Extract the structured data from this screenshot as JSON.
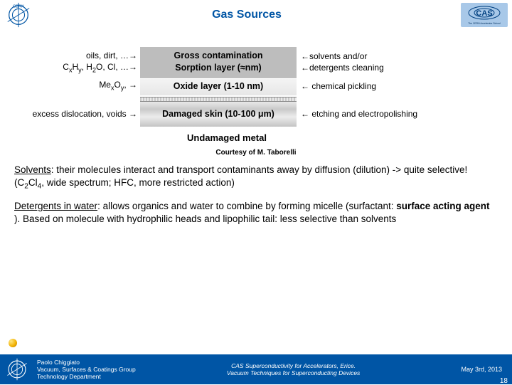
{
  "header": {
    "title": "Gas Sources",
    "left_logo_label": "CERN",
    "right_logo_tag": "The CERN Accelerator School",
    "title_color": "#0055a5"
  },
  "diagram": {
    "rows": [
      {
        "left_line1": "oils, dirt, …→",
        "left_line2_html": "C<sub>x</sub>H<sub>y</sub>, H<sub>2</sub>O, Cl, …→",
        "center_line1": "Gross contamination",
        "center_line2": "Sorption layer (≈nm)",
        "right_line1": "←solvents and/or",
        "right_line2": "←detergents cleaning",
        "bg": "#bdbdbd"
      },
      {
        "left_html": "Me<sub>x</sub>O<sub>y</sub>, →",
        "center": "Oxide layer (1-10 nm)",
        "right": "← chemical pickling",
        "bg": "#ececec"
      },
      {
        "left": "excess dislocation, voids →",
        "center_html": "Damaged skin (10-100 μm)",
        "right": "← etching and electropolishing",
        "bg_pattern": "granite"
      }
    ],
    "undamaged": "Undamaged metal",
    "courtesy": "Courtesy of M. Taborelli"
  },
  "paragraphs": {
    "p1_html": "<span class='u'>Solvents</span>: their molecules interact and transport contaminants away by diffusion (dilution) -> quite selective! (C<sub>2</sub>Cl<sub>4</sub>, wide spectrum; HFC, more restricted action)",
    "p2_html": "<span class='u'>Detergents in water</span>: allows organics and water to combine by forming micelle (surfactant: <span class='b'>surface acting agent</span> ). Based on molecule with hydrophilic heads and lipophilic tail: less selective than solvents"
  },
  "footer": {
    "author": "Paolo Chiggiato",
    "group": "Vacuum, Surfaces & Coatings Group",
    "dept": "Technology Department",
    "center_line1": "CAS Superconductivity for Accelerators, Erice.",
    "center_line2": "Vacuum Techniques for Superconducting Devices",
    "date": "May 3rd, 2013",
    "page": "18",
    "bg": "#0055a5"
  }
}
